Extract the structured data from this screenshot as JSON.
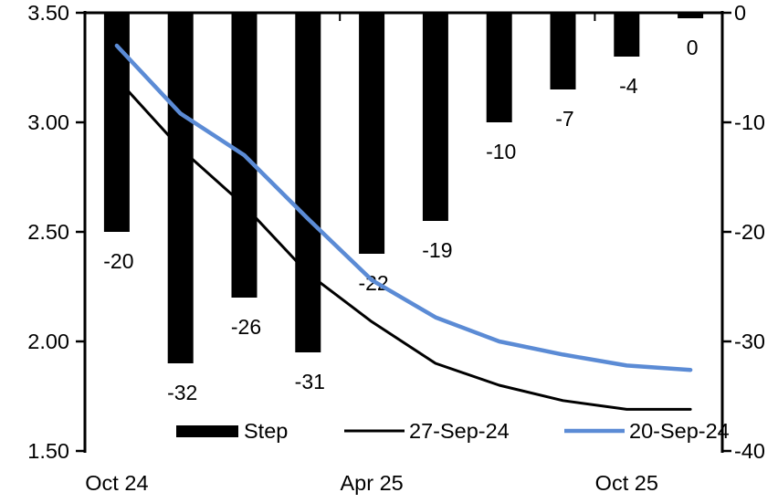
{
  "chart_data": {
    "type": "combo",
    "title": "",
    "n_points": 10,
    "x_tick_labels": [
      {
        "label": "Oct 24",
        "index": 0
      },
      {
        "label": "Apr 25",
        "index": 4
      },
      {
        "label": "Oct 25",
        "index": 8
      }
    ],
    "left_axis": {
      "min": 1.5,
      "max": 3.5,
      "tick_step": 0.5,
      "ticks": [
        "3.50",
        "3.00",
        "2.50",
        "2.00",
        "1.50"
      ]
    },
    "right_axis": {
      "min": -40,
      "max": 0,
      "tick_step": 10,
      "ticks": [
        "0",
        "-10",
        "-20",
        "-30",
        "-40"
      ]
    },
    "series": [
      {
        "name": "Step",
        "type": "bar",
        "axis": "right",
        "color": "#000000",
        "values": [
          -20,
          -32,
          -26,
          -31,
          -22,
          -19,
          -10,
          -7,
          -4,
          0
        ],
        "data_labels": [
          "-20",
          "-32",
          "-26",
          "-31",
          "-22",
          "-19",
          "-10",
          "-7",
          "-4",
          "0"
        ]
      },
      {
        "name": "27-Sep-24",
        "type": "line",
        "axis": "left",
        "color": "#000000",
        "values": [
          3.2,
          2.88,
          2.62,
          2.31,
          2.09,
          1.9,
          1.8,
          1.73,
          1.69,
          1.69
        ]
      },
      {
        "name": "20-Sep-24",
        "type": "line",
        "axis": "left",
        "color": "#5B8BD5",
        "values": [
          3.35,
          3.04,
          2.85,
          2.56,
          2.28,
          2.11,
          2.0,
          1.94,
          1.89,
          1.87
        ]
      }
    ],
    "legend": {
      "position": "bottom",
      "entries": [
        {
          "label": "Step",
          "swatch": "bar",
          "color": "#000000"
        },
        {
          "label": "27-Sep-24",
          "swatch": "line",
          "color": "#000000"
        },
        {
          "label": "20-Sep-24",
          "swatch": "line",
          "color": "#5B8BD5"
        }
      ]
    },
    "colors": {
      "accent_blue": "#5B8BD5",
      "bar_black": "#000000"
    }
  }
}
